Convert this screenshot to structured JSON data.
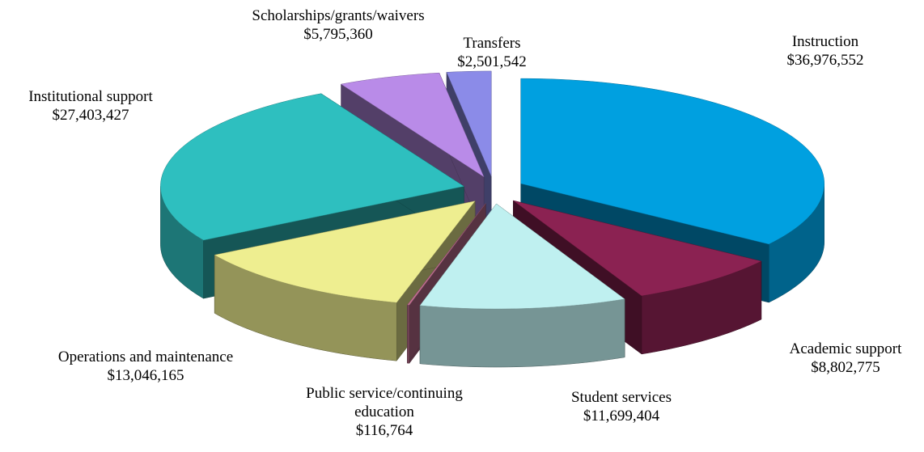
{
  "chart_data": {
    "type": "pie",
    "categories": [
      "Instruction",
      "Academic support",
      "Student services",
      "Public service/continuing education",
      "Operations and maintenance",
      "Institutional support",
      "Scholarships/grants/waivers",
      "Transfers"
    ],
    "values": [
      36976552,
      8802775,
      11699404,
      116764,
      13046165,
      27403427,
      5795360,
      2501542
    ],
    "value_labels": [
      "$36,976,552",
      "$8,802,775",
      "$11,699,404",
      "$116,764",
      "$13,046,165",
      "$27,403,427",
      "$5,795,360",
      "$2,501,542"
    ],
    "colors": [
      "#00a0e0",
      "#8b2252",
      "#bff0f0",
      "#c07090",
      "#eeee90",
      "#2ebfbf",
      "#b98be8",
      "#8b8be8"
    ]
  }
}
